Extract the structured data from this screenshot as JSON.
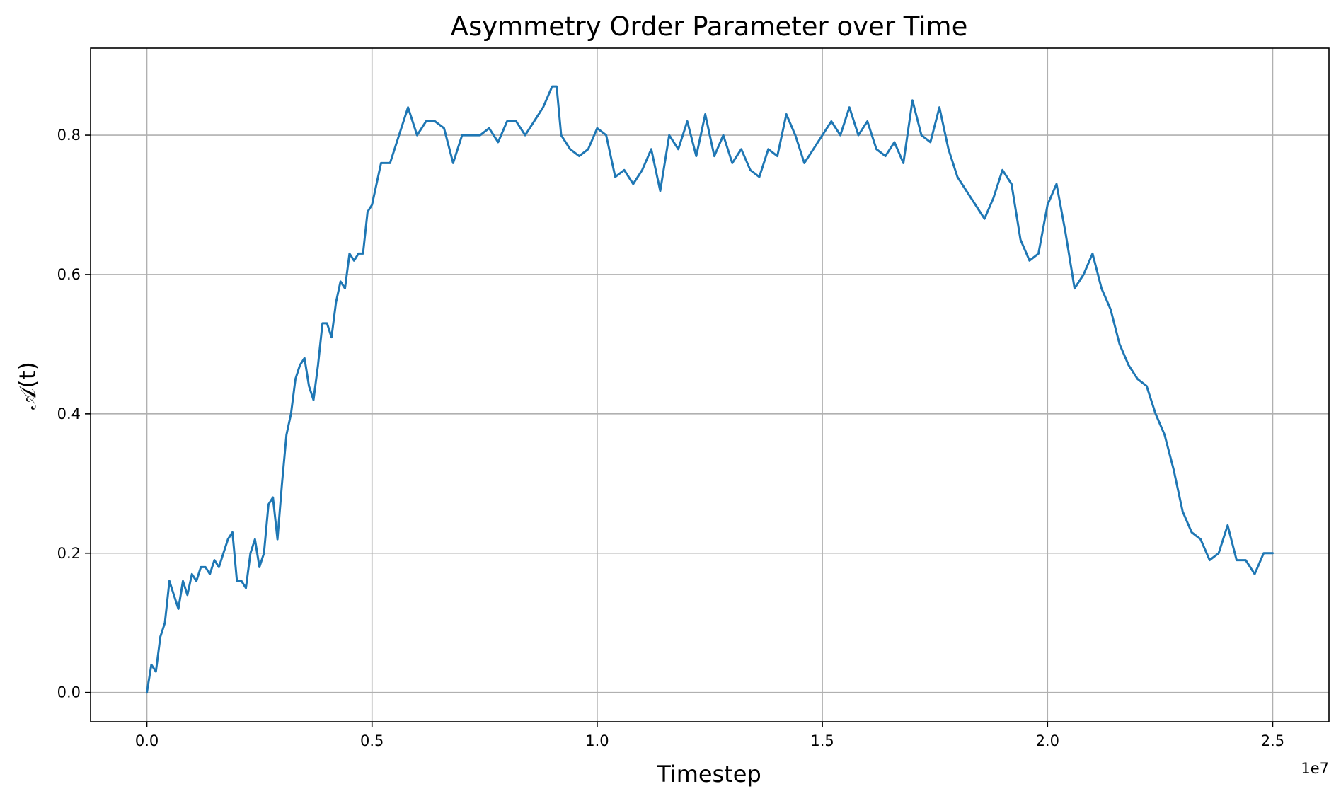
{
  "chart_data": {
    "type": "line",
    "title": "Asymmetry Order Parameter over Time",
    "xlabel": "Timestep",
    "ylabel": "𝒜(t)",
    "x_offset_label": "1e7",
    "xlim": [
      -1250000,
      26250000
    ],
    "ylim": [
      -0.042,
      0.925
    ],
    "x_ticks": [
      0,
      5000000,
      10000000,
      15000000,
      20000000,
      25000000
    ],
    "x_tick_labels": [
      "0.0",
      "0.5",
      "1.0",
      "1.5",
      "2.0",
      "2.5"
    ],
    "y_ticks": [
      0.0,
      0.2,
      0.4,
      0.6,
      0.8
    ],
    "y_tick_labels": [
      "0.0",
      "0.2",
      "0.4",
      "0.6",
      "0.8"
    ],
    "grid": true,
    "series": [
      {
        "color": "#1f77b4",
        "x": [
          0,
          100000,
          200000,
          300000,
          400000,
          500000,
          600000,
          700000,
          800000,
          900000,
          1000000,
          1100000,
          1200000,
          1300000,
          1400000,
          1500000,
          1600000,
          1700000,
          1800000,
          1900000,
          2000000,
          2100000,
          2200000,
          2300000,
          2400000,
          2500000,
          2600000,
          2700000,
          2800000,
          2900000,
          3000000,
          3100000,
          3200000,
          3300000,
          3400000,
          3500000,
          3600000,
          3700000,
          3800000,
          3900000,
          4000000,
          4100000,
          4200000,
          4300000,
          4400000,
          4500000,
          4600000,
          4700000,
          4800000,
          4900000,
          5000000,
          5200000,
          5400000,
          5600000,
          5800000,
          6000000,
          6200000,
          6400000,
          6600000,
          6800000,
          7000000,
          7200000,
          7400000,
          7600000,
          7800000,
          8000000,
          8200000,
          8400000,
          8600000,
          8800000,
          9000000,
          9100000,
          9200000,
          9400000,
          9600000,
          9800000,
          10000000,
          10200000,
          10400000,
          10600000,
          10800000,
          11000000,
          11200000,
          11400000,
          11600000,
          11800000,
          12000000,
          12200000,
          12400000,
          12600000,
          12800000,
          13000000,
          13200000,
          13400000,
          13600000,
          13800000,
          14000000,
          14200000,
          14400000,
          14600000,
          14800000,
          15000000,
          15200000,
          15400000,
          15600000,
          15800000,
          16000000,
          16200000,
          16400000,
          16600000,
          16800000,
          17000000,
          17200000,
          17400000,
          17600000,
          17800000,
          18000000,
          18200000,
          18400000,
          18600000,
          18800000,
          19000000,
          19200000,
          19400000,
          19600000,
          19800000,
          20000000,
          20200000,
          20400000,
          20600000,
          20800000,
          21000000,
          21200000,
          21400000,
          21600000,
          21800000,
          22000000,
          22200000,
          22400000,
          22600000,
          22800000,
          23000000,
          23200000,
          23400000,
          23600000,
          23800000,
          24000000,
          24200000,
          24400000,
          24600000,
          24800000,
          25000000
        ],
        "y": [
          0.0,
          0.04,
          0.03,
          0.08,
          0.1,
          0.16,
          0.14,
          0.12,
          0.16,
          0.14,
          0.17,
          0.16,
          0.18,
          0.18,
          0.17,
          0.19,
          0.18,
          0.2,
          0.22,
          0.23,
          0.16,
          0.16,
          0.15,
          0.2,
          0.22,
          0.18,
          0.2,
          0.27,
          0.28,
          0.22,
          0.3,
          0.37,
          0.4,
          0.45,
          0.47,
          0.48,
          0.44,
          0.42,
          0.47,
          0.53,
          0.53,
          0.51,
          0.56,
          0.59,
          0.58,
          0.63,
          0.62,
          0.63,
          0.63,
          0.69,
          0.7,
          0.76,
          0.76,
          0.8,
          0.84,
          0.8,
          0.82,
          0.82,
          0.81,
          0.76,
          0.8,
          0.8,
          0.8,
          0.81,
          0.79,
          0.82,
          0.82,
          0.8,
          0.82,
          0.84,
          0.87,
          0.87,
          0.8,
          0.78,
          0.77,
          0.78,
          0.81,
          0.8,
          0.74,
          0.75,
          0.73,
          0.75,
          0.78,
          0.72,
          0.8,
          0.78,
          0.82,
          0.77,
          0.83,
          0.77,
          0.8,
          0.76,
          0.78,
          0.75,
          0.74,
          0.78,
          0.77,
          0.83,
          0.8,
          0.76,
          0.78,
          0.8,
          0.82,
          0.8,
          0.84,
          0.8,
          0.82,
          0.78,
          0.77,
          0.79,
          0.76,
          0.85,
          0.8,
          0.79,
          0.84,
          0.78,
          0.74,
          0.72,
          0.7,
          0.68,
          0.71,
          0.75,
          0.73,
          0.65,
          0.62,
          0.63,
          0.7,
          0.73,
          0.66,
          0.58,
          0.6,
          0.63,
          0.58,
          0.55,
          0.5,
          0.47,
          0.45,
          0.44,
          0.4,
          0.37,
          0.32,
          0.26,
          0.23,
          0.22,
          0.19,
          0.2,
          0.24,
          0.19,
          0.19,
          0.17,
          0.2,
          0.2
        ]
      }
    ]
  }
}
